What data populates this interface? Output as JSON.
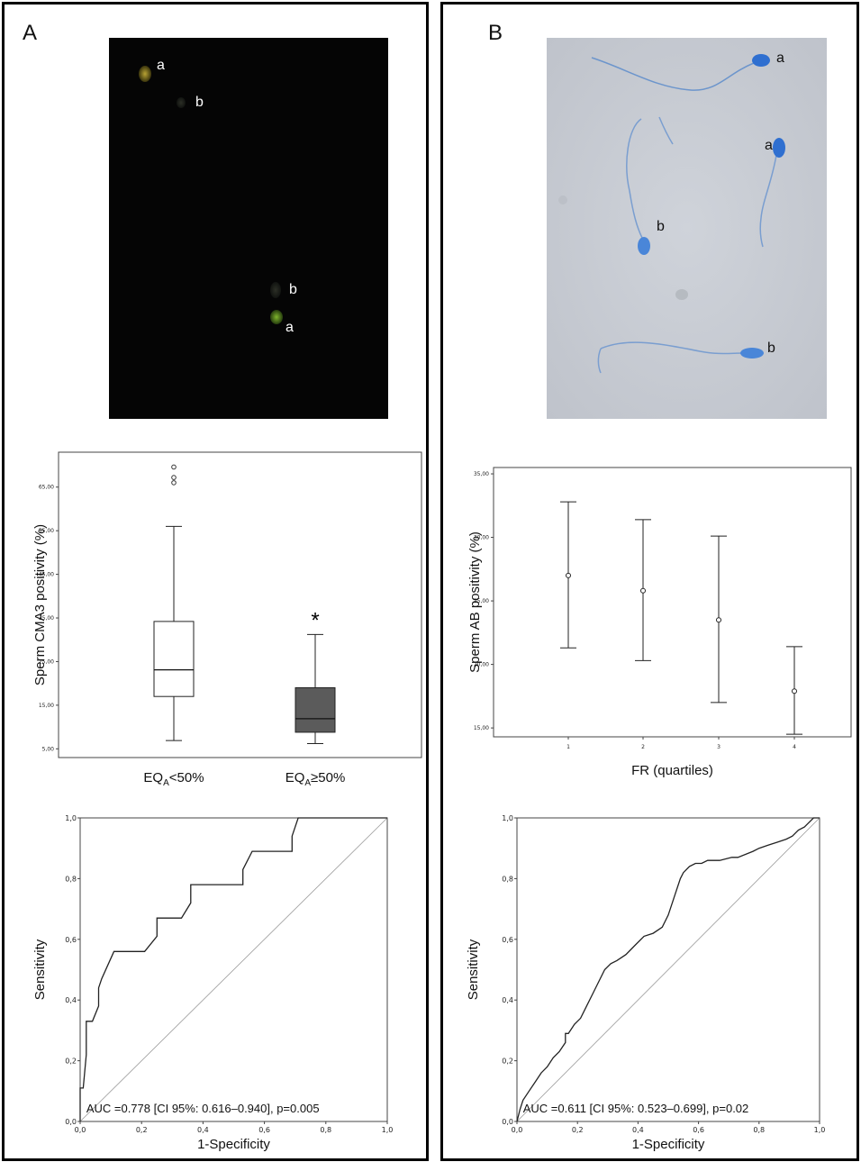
{
  "panel_a": {
    "label": "A",
    "micrograph": {
      "labels": [
        "a",
        "b",
        "b",
        "a"
      ]
    }
  },
  "panel_b": {
    "label": "B",
    "micrograph": {
      "labels": [
        "a",
        "a",
        "b",
        "b"
      ]
    }
  },
  "chart_data": [
    {
      "id": "box",
      "type": "box",
      "title": "",
      "ylabel": "Sperm  CMA3 positivity (%)",
      "xlabel": "",
      "ylim": [
        3,
        73
      ],
      "yticks": [
        "5,00",
        "15,00",
        "25,00",
        "35,00",
        "45,00",
        "55,00",
        "65,00"
      ],
      "ytick_values": [
        5,
        15,
        25,
        35,
        45,
        55,
        65
      ],
      "categories": [
        "EQ_A<50%",
        "EQ_A≥50%"
      ],
      "category_display": [
        {
          "base": "EQ",
          "sub": "A",
          "rest": "<50%"
        },
        {
          "base": "EQ",
          "sub": "A",
          "rest": "≥50%"
        }
      ],
      "boxes": [
        {
          "min": 6.9,
          "q1": 17.0,
          "median": 23.1,
          "q3": 34.2,
          "max": 56.0,
          "outliers": [
            66.0,
            67.2,
            69.6
          ],
          "fill": "#ffffff"
        },
        {
          "min": 6.2,
          "q1": 8.8,
          "median": 11.9,
          "q3": 19.0,
          "max": 31.2,
          "outliers": [],
          "fill": "#5b5b5b"
        }
      ],
      "annotation": "*"
    },
    {
      "id": "err",
      "type": "errorbar",
      "title": "",
      "ylabel": "Sperm  AB positivity (%)",
      "xlabel": "FR (quartiles)",
      "ylim": [
        14.3,
        35.5
      ],
      "yticks": [
        "15,00",
        "20,00",
        "25,00",
        "30,00",
        "35,00"
      ],
      "ytick_values": [
        15,
        20,
        25,
        30,
        35
      ],
      "categories": [
        "1",
        "2",
        "3",
        "4"
      ],
      "means": [
        27.0,
        25.8,
        23.5,
        17.9
      ],
      "lower": [
        21.3,
        20.3,
        17.0,
        14.5
      ],
      "upper": [
        32.8,
        31.4,
        30.1,
        21.4
      ]
    },
    {
      "id": "rocA",
      "type": "line",
      "title": "",
      "xlabel": "1-Specificity",
      "ylabel": "Sensitivity",
      "xlim": [
        0,
        1
      ],
      "ylim": [
        0,
        1
      ],
      "xticks": [
        "0,0",
        "0,2",
        "0,4",
        "0,6",
        "0,8",
        "1,0"
      ],
      "yticks": [
        "0,0",
        "0,2",
        "0,4",
        "0,6",
        "0,8",
        "1,0"
      ],
      "tick_values": [
        0,
        0.2,
        0.4,
        0.6,
        0.8,
        1.0
      ],
      "x": [
        0.0,
        0.0,
        0.01,
        0.02,
        0.02,
        0.03,
        0.04,
        0.06,
        0.06,
        0.07,
        0.11,
        0.11,
        0.21,
        0.21,
        0.25,
        0.25,
        0.33,
        0.33,
        0.36,
        0.36,
        0.53,
        0.53,
        0.56,
        0.56,
        0.69,
        0.69,
        0.71,
        0.71,
        1.0
      ],
      "y": [
        0.0,
        0.11,
        0.11,
        0.22,
        0.33,
        0.33,
        0.33,
        0.38,
        0.44,
        0.47,
        0.56,
        0.56,
        0.56,
        0.56,
        0.61,
        0.67,
        0.67,
        0.67,
        0.72,
        0.78,
        0.78,
        0.83,
        0.89,
        0.89,
        0.89,
        0.94,
        1.0,
        1.0,
        1.0
      ],
      "annotation": "AUC =0.778  [CI 95%: 0.616–0.940], p=0.005"
    },
    {
      "id": "rocB",
      "type": "line",
      "title": "",
      "xlabel": "1-Specificity",
      "ylabel": "Sensitivity",
      "xlim": [
        0,
        1
      ],
      "ylim": [
        0,
        1
      ],
      "xticks": [
        "0,0",
        "0,2",
        "0,4",
        "0,6",
        "0,8",
        "1,0"
      ],
      "yticks": [
        "0,0",
        "0,2",
        "0,4",
        "0,6",
        "0,8",
        "1,0"
      ],
      "tick_values": [
        0,
        0.2,
        0.4,
        0.6,
        0.8,
        1.0
      ],
      "x": [
        0.0,
        0.01,
        0.02,
        0.04,
        0.06,
        0.08,
        0.1,
        0.12,
        0.14,
        0.16,
        0.16,
        0.17,
        0.19,
        0.21,
        0.23,
        0.25,
        0.27,
        0.29,
        0.31,
        0.33,
        0.36,
        0.39,
        0.42,
        0.45,
        0.48,
        0.5,
        0.52,
        0.54,
        0.55,
        0.57,
        0.59,
        0.61,
        0.63,
        0.67,
        0.71,
        0.73,
        0.78,
        0.8,
        0.83,
        0.86,
        0.89,
        0.91,
        0.93,
        0.95,
        0.96,
        0.98,
        1.0
      ],
      "y": [
        0.0,
        0.04,
        0.07,
        0.1,
        0.13,
        0.16,
        0.18,
        0.21,
        0.23,
        0.26,
        0.29,
        0.29,
        0.32,
        0.34,
        0.38,
        0.42,
        0.46,
        0.5,
        0.52,
        0.53,
        0.55,
        0.58,
        0.61,
        0.62,
        0.64,
        0.68,
        0.74,
        0.8,
        0.82,
        0.84,
        0.85,
        0.85,
        0.86,
        0.86,
        0.87,
        0.87,
        0.89,
        0.9,
        0.91,
        0.92,
        0.93,
        0.94,
        0.96,
        0.97,
        0.98,
        1.0,
        1.0
      ],
      "annotation": "AUC =0.611  [CI 95%: 0.523–0.699], p=0.02"
    }
  ]
}
